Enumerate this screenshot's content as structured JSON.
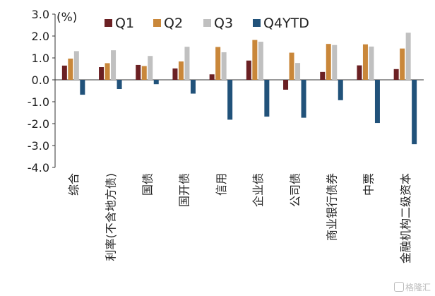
{
  "chart_data": {
    "type": "bar",
    "unit_label": "(%)",
    "categories": [
      "综合",
      "利率(不含地方债)",
      "国债",
      "国开债",
      "信用",
      "企业债",
      "公司债",
      "商业银行债券",
      "中票",
      "金融机构二级资本"
    ],
    "series": [
      {
        "name": "Q1",
        "color": "#6b2023",
        "values": [
          0.65,
          0.58,
          0.68,
          0.52,
          0.25,
          0.88,
          -0.45,
          0.36,
          0.66,
          0.49
        ]
      },
      {
        "name": "Q2",
        "color": "#c9873a",
        "values": [
          0.97,
          0.76,
          0.63,
          0.84,
          1.5,
          1.82,
          1.24,
          1.64,
          1.62,
          1.43
        ]
      },
      {
        "name": "Q3",
        "color": "#c0c0c0",
        "values": [
          1.31,
          1.35,
          1.09,
          1.51,
          1.26,
          1.74,
          0.77,
          1.59,
          1.52,
          2.15
        ]
      },
      {
        "name": "Q4YTD",
        "color": "#21527a",
        "values": [
          -0.68,
          -0.42,
          -0.2,
          -0.63,
          -1.82,
          -1.68,
          -1.73,
          -0.93,
          -1.97,
          -2.94
        ]
      }
    ],
    "ylim": [
      -4.0,
      3.0
    ],
    "yticks": [
      "3.0",
      "2.0",
      "1.0",
      "0.0",
      "-1.0",
      "-2.0",
      "-3.0",
      "-4.0"
    ],
    "legend_position": "top"
  },
  "watermark": "格隆汇"
}
